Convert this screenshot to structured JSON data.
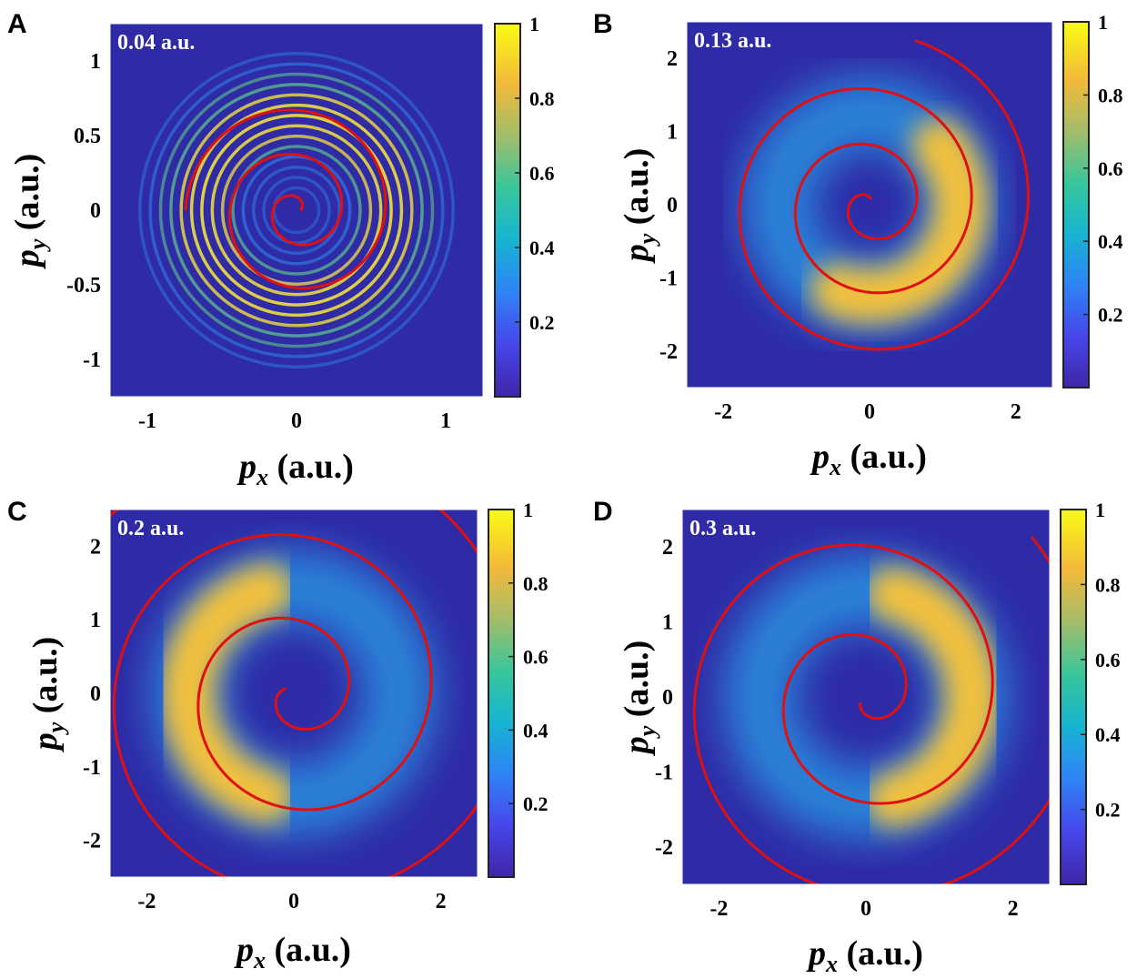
{
  "chart_data": [
    {
      "type": "heatmap",
      "panel_label": "A",
      "annotation": "0.04 a.u.",
      "xlabel": "p_x (a.u.)",
      "ylabel": "p_y (a.u.)",
      "xlim": [
        -1.25,
        1.25
      ],
      "ylim": [
        -1.25,
        1.25
      ],
      "xticks": [
        -1,
        0,
        1
      ],
      "yticks": [
        -1,
        -0.5,
        0,
        0.5,
        1
      ],
      "ytick_labels": [
        "-1",
        "-0.5",
        "0",
        "0.5",
        "1"
      ],
      "colorbar": {
        "min": 0,
        "max": 1,
        "ticks": [
          0.2,
          0.4,
          0.6,
          0.8,
          1
        ],
        "tick_labels": [
          "0.2",
          "0.4",
          "0.6",
          "0.8",
          "1"
        ]
      },
      "distribution": {
        "shape": "concentric rings",
        "ring_radius_range": [
          0.15,
          1.05
        ],
        "ring_count": 14,
        "peak_radius": 0.65
      },
      "spiral": {
        "color": "#e01010",
        "shape": "Archimedean-like spiral",
        "outer_radius": 0.72,
        "turns": 2.5
      }
    },
    {
      "type": "heatmap",
      "panel_label": "B",
      "annotation": "0.13 a.u.",
      "xlabel": "p_x (a.u.)",
      "ylabel": "p_y (a.u.)",
      "xlim": [
        -2.5,
        2.5
      ],
      "ylim": [
        -2.5,
        2.5
      ],
      "xticks": [
        -2,
        0,
        2
      ],
      "yticks": [
        -2,
        -1,
        0,
        1,
        2
      ],
      "ytick_labels": [
        "-2",
        "-1",
        "0",
        "1",
        "2"
      ],
      "colorbar": {
        "min": 0,
        "max": 1,
        "ticks": [
          0.2,
          0.4,
          0.6,
          0.8,
          1
        ],
        "tick_labels": [
          "0.2",
          "0.4",
          "0.6",
          "0.8",
          "1"
        ]
      },
      "distribution": {
        "shape": "ring",
        "ring_radius": 1.25,
        "peak_direction": "lower-right"
      },
      "spiral": {
        "color": "#e01010",
        "shape": "spiral",
        "outer_radius": 2.25,
        "turns": 3
      }
    },
    {
      "type": "heatmap",
      "panel_label": "C",
      "annotation": "0.2 a.u.",
      "xlabel": "p_x (a.u.)",
      "ylabel": "p_y (a.u.)",
      "xlim": [
        -2.5,
        2.5
      ],
      "ylim": [
        -2.5,
        2.5
      ],
      "xticks": [
        -2,
        0,
        2
      ],
      "yticks": [
        -2,
        -1,
        0,
        1,
        2
      ],
      "ytick_labels": [
        "-2",
        "-1",
        "0",
        "1",
        "2"
      ],
      "colorbar": {
        "min": 0,
        "max": 1,
        "ticks": [
          0.2,
          0.4,
          0.6,
          0.8,
          1
        ],
        "tick_labels": [
          "0.2",
          "0.4",
          "0.6",
          "0.8",
          "1"
        ]
      },
      "distribution": {
        "shape": "crescent",
        "ring_radius": 1.45,
        "peak_direction": "left"
      },
      "spiral": {
        "color": "#e01010",
        "shape": "spiral",
        "outer_radius": 3.4,
        "turns": 3
      }
    },
    {
      "type": "heatmap",
      "panel_label": "D",
      "annotation": "0.3 a.u.",
      "xlabel": "p_x (a.u.)",
      "ylabel": "p_y (a.u.)",
      "xlim": [
        -2.5,
        2.5
      ],
      "ylim": [
        -2.5,
        2.5
      ],
      "xticks": [
        -2,
        0,
        2
      ],
      "yticks": [
        -2,
        -1,
        0,
        1,
        2
      ],
      "ytick_labels": [
        "-2",
        "-1",
        "0",
        "1",
        "2"
      ],
      "colorbar": {
        "min": 0,
        "max": 1,
        "ticks": [
          0.2,
          0.4,
          0.6,
          0.8,
          1
        ],
        "tick_labels": [
          "0.2",
          "0.4",
          "0.6",
          "0.8",
          "1"
        ]
      },
      "distribution": {
        "shape": "crescent",
        "ring_radius": 1.45,
        "peak_direction": "right"
      },
      "spiral": {
        "color": "#e01010",
        "shape": "spiral",
        "outer_radius": 3.0,
        "turns": 2.5
      }
    }
  ],
  "colors": {
    "background": "#2f2aa6",
    "spiral": "#e01010",
    "colormap": [
      "#3e26a8",
      "#4746eb",
      "#2f83f6",
      "#16b4d1",
      "#38c69b",
      "#a3bd6a",
      "#f3b93a",
      "#f9fb15"
    ]
  },
  "axis_label_parts": {
    "x_var": "p",
    "x_sub": "x",
    "y_var": "p",
    "y_sub": "y",
    "unit": " (a.u.)"
  }
}
